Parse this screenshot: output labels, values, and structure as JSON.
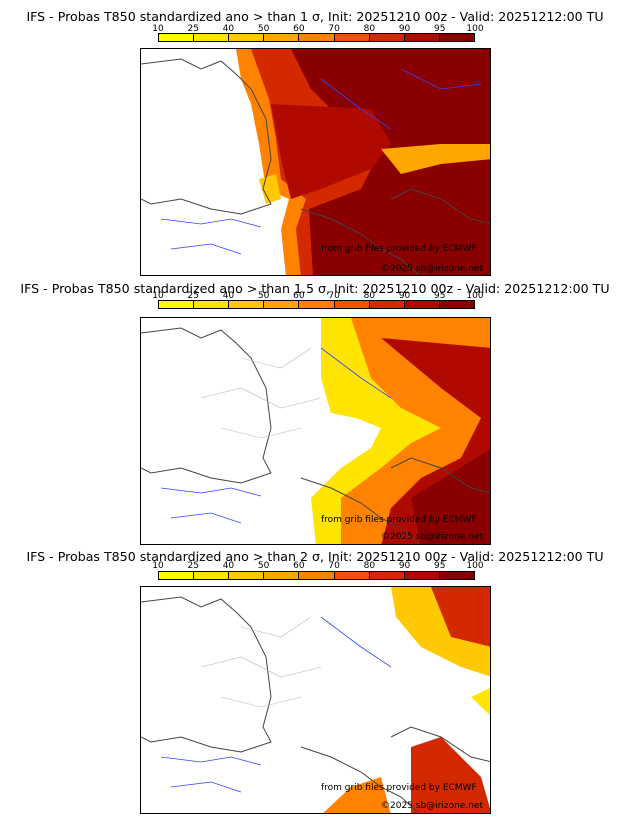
{
  "colorbar": {
    "ticks": [
      "10",
      "25",
      "40",
      "50",
      "60",
      "70",
      "80",
      "90",
      "95",
      "100"
    ],
    "colors": [
      "#ffff00",
      "#ffe400",
      "#ffc800",
      "#ffa600",
      "#ff8200",
      "#f05000",
      "#d42800",
      "#b00a00",
      "#8a0000"
    ]
  },
  "panels": [
    {
      "title": "IFS - Probas T850  standardized ano > than 1 σ, Init: 20251210 00z - Valid: 20251212:00 TU",
      "threshold": "1 σ",
      "coverage": "high"
    },
    {
      "title": "IFS - Probas T850  standardized ano > than 1.5 σ, Init: 20251210 00z - Valid: 20251212:00 TU",
      "threshold": "1.5 σ",
      "coverage": "medium"
    },
    {
      "title": "IFS - Probas T850  standardized ano > than 2 σ, Init: 20251210 00z - Valid: 20251212:00 TU",
      "threshold": "2 σ",
      "coverage": "low"
    }
  ],
  "credits": {
    "source": "from grib files provided by ECMWF",
    "copyright": "©2025 sb@irizone.net"
  }
}
